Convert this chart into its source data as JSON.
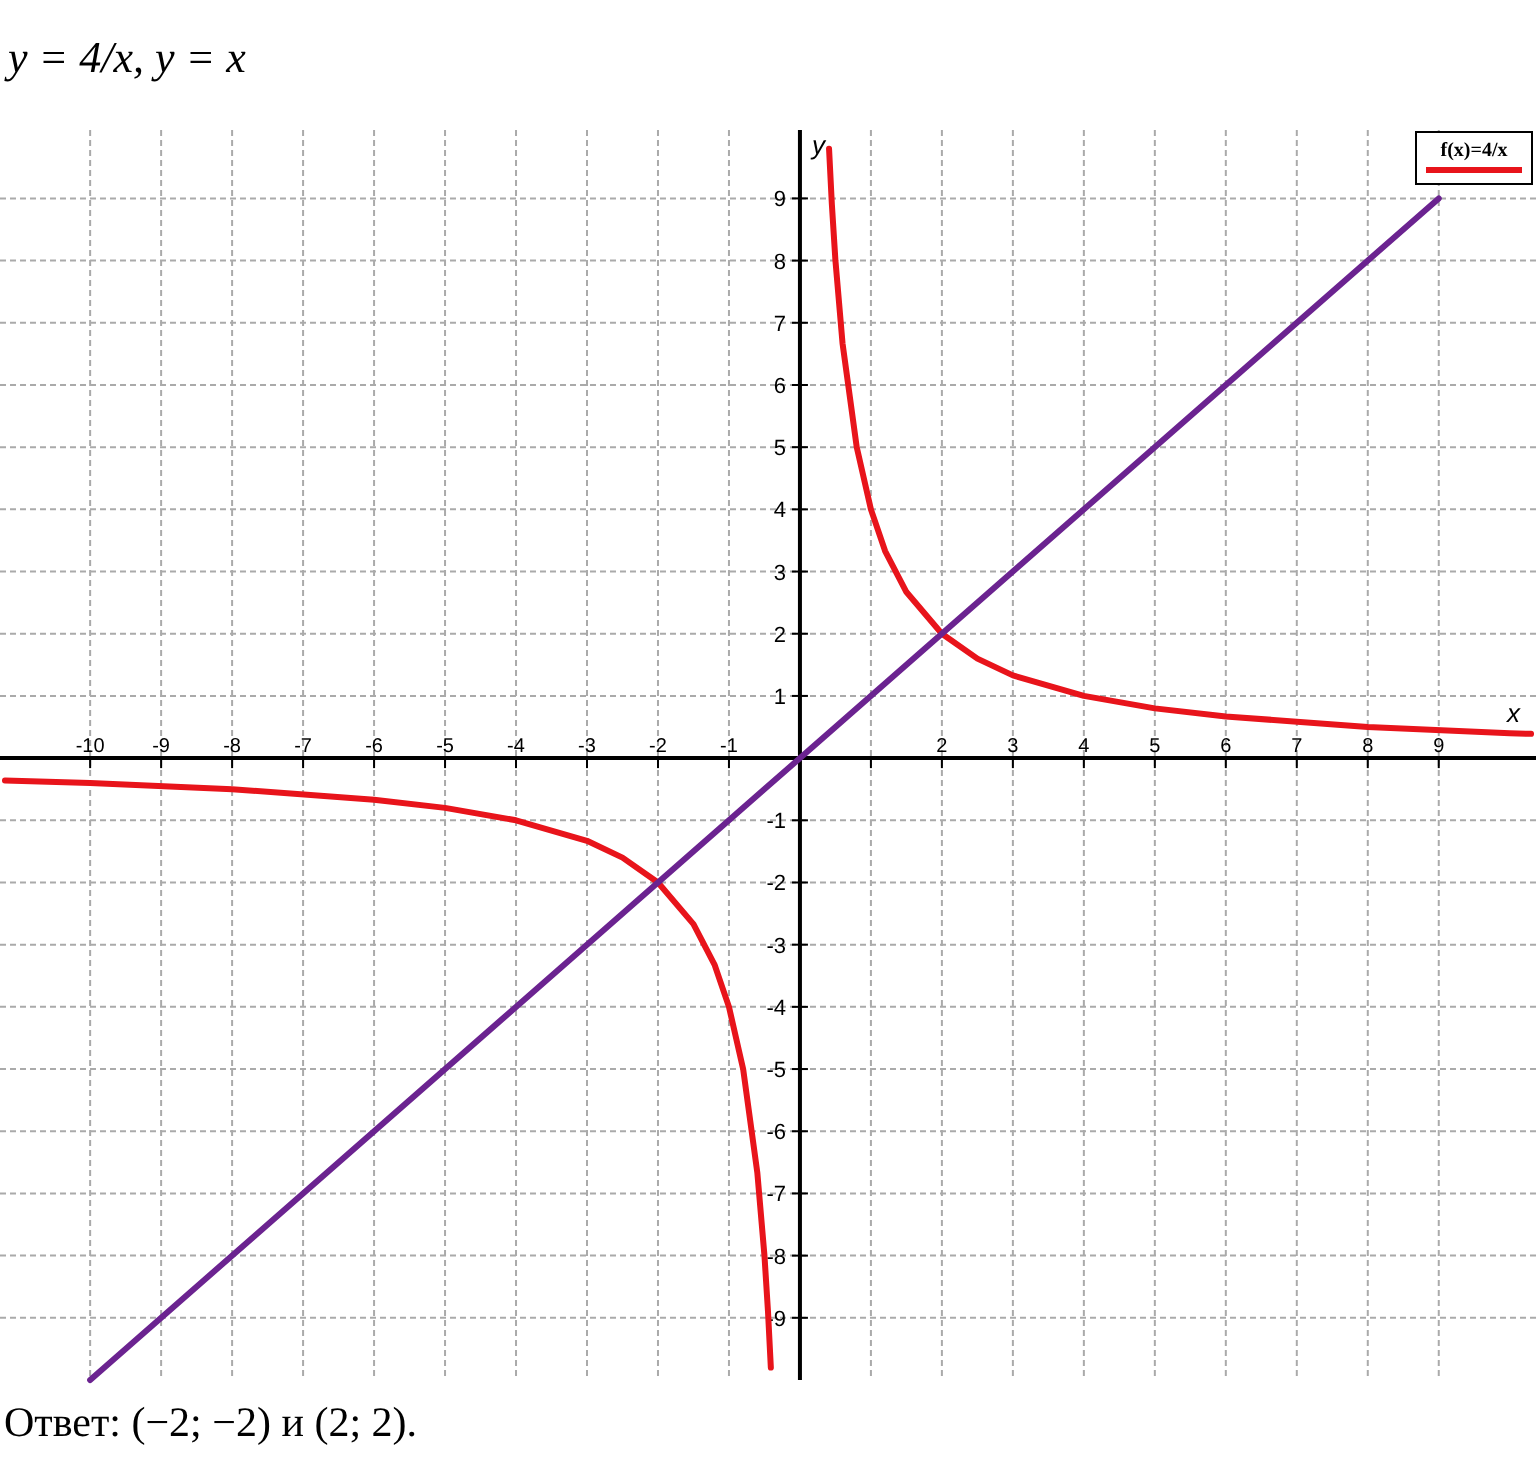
{
  "chart_data": {
    "type": "line",
    "title": "y = 4/x,    y = x",
    "xlabel": "x",
    "ylabel": "y",
    "xlim": [
      -11.27,
      10.37
    ],
    "ylim": [
      -10,
      10.1
    ],
    "xticks": [
      -10,
      -9,
      -8,
      -7,
      -6,
      -5,
      -4,
      -3,
      -2,
      -1,
      {
        "value": 1,
        "label": null
      },
      2,
      3,
      4,
      5,
      6,
      7,
      8,
      9
    ],
    "yticks": [
      -9,
      -8,
      -7,
      -6,
      -5,
      -4,
      -3,
      -2,
      -1,
      1,
      2,
      3,
      4,
      5,
      6,
      7,
      8,
      9
    ],
    "grid": true,
    "legend": "top right",
    "marker": "none",
    "line_style": "solid",
    "series": [
      {
        "name": "f(x)=4/x",
        "color": "#e8141b",
        "x": [
          -11.2,
          -10,
          -8,
          -6,
          -5,
          -4,
          -3,
          -2.5,
          -2,
          -1.5,
          -1.2,
          -1,
          -0.8,
          -0.6,
          -0.5,
          -0.45,
          -0.41,
          0,
          0.41,
          0.45,
          0.5,
          0.6,
          0.8,
          1,
          1.2,
          1.5,
          2,
          2.5,
          3,
          4,
          5,
          6,
          8,
          10,
          10.3
        ],
        "values": [
          -0.36,
          -0.4,
          -0.5,
          -0.67,
          -0.8,
          -1,
          -1.33,
          -1.6,
          -2,
          -2.67,
          -3.33,
          -4,
          -5,
          -6.67,
          -8,
          -8.9,
          -9.8,
          null,
          9.8,
          8.9,
          8,
          6.67,
          5,
          4,
          3.33,
          2.67,
          2,
          1.6,
          1.33,
          1,
          0.8,
          0.67,
          0.5,
          0.4,
          0.39
        ]
      },
      {
        "color": "#6b2390",
        "x": [
          -10,
          9
        ],
        "values": [
          -10,
          9
        ]
      }
    ],
    "annotations": [
      "Ответ: (−2; −2) и (2; 2)."
    ]
  }
}
